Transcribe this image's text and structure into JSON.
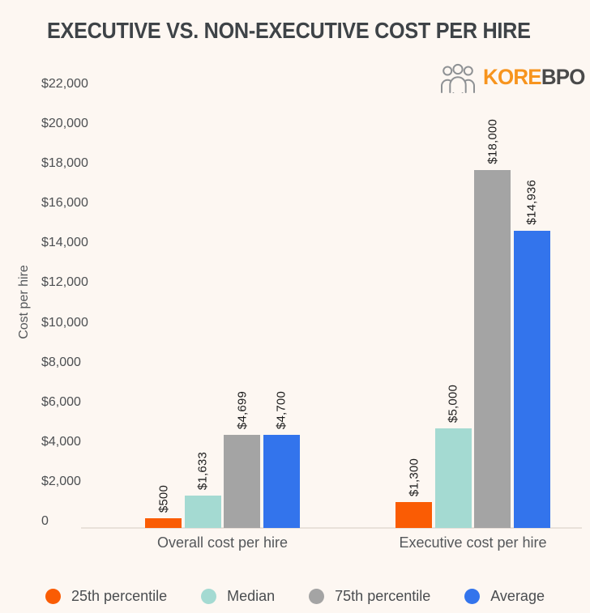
{
  "title": "EXECUTIVE VS. NON-EXECUTIVE COST PER HIRE",
  "logo": {
    "icon": "people-group-icon",
    "brand_primary": "KORE",
    "brand_secondary": "BPO",
    "brand_primary_color": "#F7941E",
    "brand_secondary_color": "#4A4A4A"
  },
  "chart_data": {
    "type": "bar",
    "title": "EXECUTIVE VS. NON-EXECUTIVE COST PER HIRE",
    "ylabel": "Cost per hire",
    "xlabel": "",
    "categories": [
      "Overall cost per hire",
      "Executive cost per hire"
    ],
    "series": [
      {
        "name": "25th percentile",
        "color": "#FA5C04",
        "values": [
          500,
          1300
        ],
        "data_labels": [
          "$500",
          "$1,300"
        ]
      },
      {
        "name": "Median",
        "color": "#A4DAD2",
        "values": [
          1633,
          5000
        ],
        "data_labels": [
          "$1,633",
          "$5,000"
        ]
      },
      {
        "name": "75th percentile",
        "color": "#A4A4A4",
        "values": [
          4699,
          18000
        ],
        "data_labels": [
          "$4,699",
          "$18,000"
        ]
      },
      {
        "name": "Average",
        "color": "#3374EC",
        "values": [
          4700,
          14936
        ],
        "data_labels": [
          "$4,700",
          "$14,936"
        ]
      }
    ],
    "ylim": [
      0,
      22000
    ],
    "yticks": [
      {
        "label": "$22,000",
        "value": 22000
      },
      {
        "label": "$20,000",
        "value": 20000
      },
      {
        "label": "$18,000",
        "value": 18000
      },
      {
        "label": "$16,000",
        "value": 16000
      },
      {
        "label": "$14,000",
        "value": 14000
      },
      {
        "label": "$12,000",
        "value": 12000
      },
      {
        "label": "$10,000",
        "value": 10000
      },
      {
        "label": "$8,000",
        "value": 8000
      },
      {
        "label": "$6,000",
        "value": 6000
      },
      {
        "label": "$4,000",
        "value": 4000
      },
      {
        "label": "$2,000",
        "value": 2000
      },
      {
        "label": "0",
        "value": 0
      }
    ],
    "grid": false,
    "legend_position": "bottom"
  }
}
